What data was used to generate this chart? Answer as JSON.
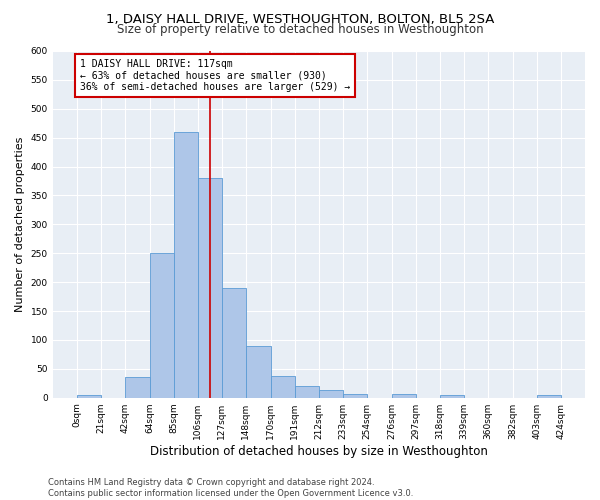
{
  "title": "1, DAISY HALL DRIVE, WESTHOUGHTON, BOLTON, BL5 2SA",
  "subtitle": "Size of property relative to detached houses in Westhoughton",
  "xlabel": "Distribution of detached houses by size in Westhoughton",
  "ylabel": "Number of detached properties",
  "bar_color": "#aec6e8",
  "bar_edge_color": "#5b9bd5",
  "bin_edges": [
    0,
    21,
    42,
    64,
    85,
    106,
    127,
    148,
    170,
    191,
    212,
    233,
    254,
    276,
    297,
    318,
    339,
    360,
    382,
    403,
    424
  ],
  "bar_heights": [
    5,
    0,
    35,
    250,
    460,
    380,
    190,
    90,
    38,
    20,
    13,
    7,
    0,
    6,
    0,
    5,
    0,
    0,
    0,
    5
  ],
  "tick_labels": [
    "0sqm",
    "21sqm",
    "42sqm",
    "64sqm",
    "85sqm",
    "106sqm",
    "127sqm",
    "148sqm",
    "170sqm",
    "191sqm",
    "212sqm",
    "233sqm",
    "254sqm",
    "276sqm",
    "297sqm",
    "318sqm",
    "339sqm",
    "360sqm",
    "382sqm",
    "403sqm",
    "424sqm"
  ],
  "property_size": 117,
  "property_label": "1 DAISY HALL DRIVE: 117sqm",
  "annotation_line1": "← 63% of detached houses are smaller (930)",
  "annotation_line2": "36% of semi-detached houses are larger (529) →",
  "annotation_box_color": "#ffffff",
  "annotation_box_edge_color": "#cc0000",
  "vline_color": "#cc0000",
  "ylim": [
    0,
    600
  ],
  "yticks": [
    0,
    50,
    100,
    150,
    200,
    250,
    300,
    350,
    400,
    450,
    500,
    550,
    600
  ],
  "background_color": "#e8eef5",
  "footer_line1": "Contains HM Land Registry data © Crown copyright and database right 2024.",
  "footer_line2": "Contains public sector information licensed under the Open Government Licence v3.0.",
  "title_fontsize": 9.5,
  "subtitle_fontsize": 8.5,
  "xlabel_fontsize": 8.5,
  "ylabel_fontsize": 8,
  "tick_fontsize": 6.5,
  "footer_fontsize": 6,
  "annotation_fontsize": 7
}
